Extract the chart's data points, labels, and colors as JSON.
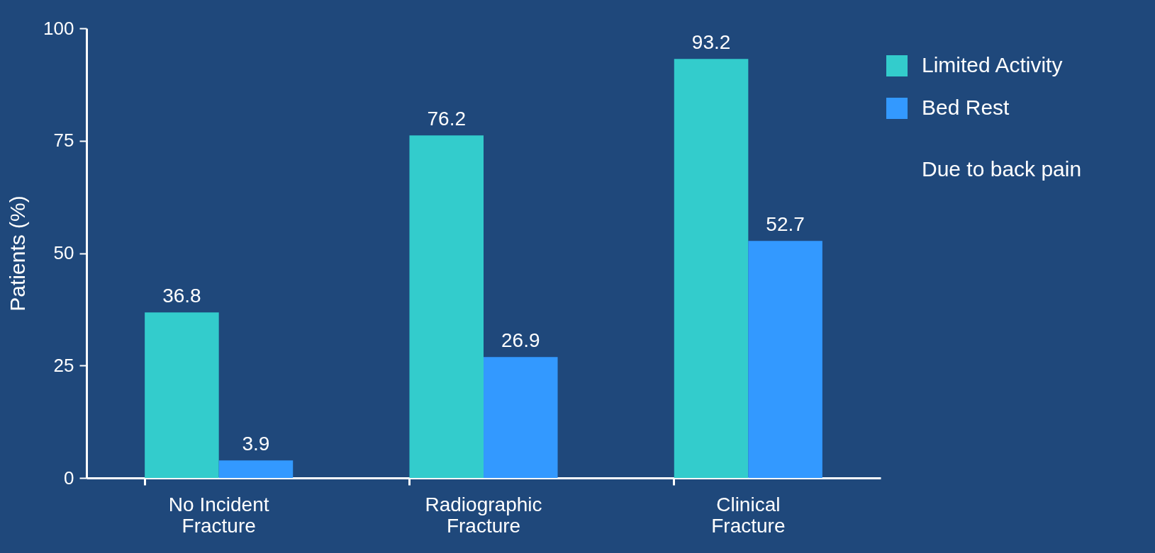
{
  "chart_data": {
    "type": "bar",
    "ylabel": "Patients (%)",
    "categories": [
      "No Incident Fracture",
      "Radiographic Fracture",
      "Clinical Fracture"
    ],
    "series": [
      {
        "name": "Limited Activity",
        "color": "#33cccc",
        "values": [
          36.8,
          76.2,
          93.2
        ]
      },
      {
        "name": "Bed Rest",
        "color": "#3399ff",
        "values": [
          3.9,
          26.9,
          52.7
        ]
      }
    ],
    "ylim": [
      0,
      100
    ],
    "yticks": [
      0,
      25,
      50,
      75,
      100
    ],
    "grid": false,
    "legend": "top right",
    "data_labels": true,
    "annotations": [
      "Due to back pain"
    ]
  }
}
